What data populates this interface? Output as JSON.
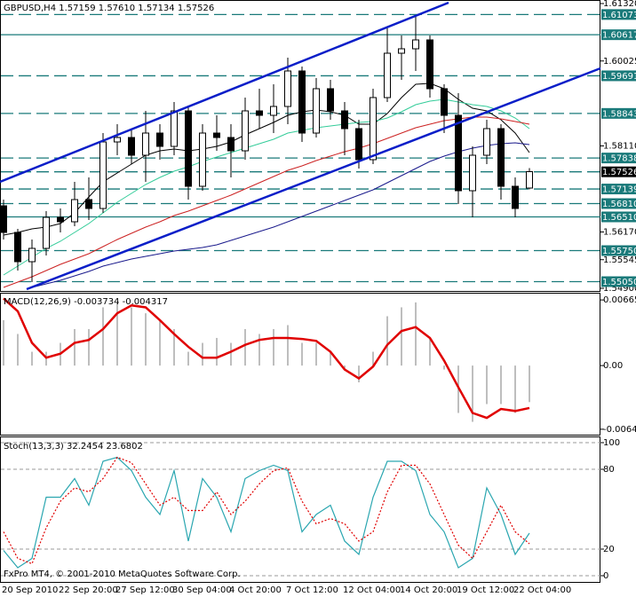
{
  "chart_data": [
    {
      "type": "candlestick",
      "title": "GBPUSD,H4  1.57159 1.57610 1.57134 1.57526",
      "categories": [
        "20 Sep 2010",
        null,
        null,
        null,
        "22 Sep 20:00",
        null,
        null,
        null,
        "27 Sep 12:00",
        null,
        null,
        null,
        "30 Sep 04:00",
        null,
        null,
        null,
        "4 Oct 20:00",
        null,
        null,
        null,
        "7 Oct 12:00",
        null,
        null,
        null,
        "12 Oct 04:00",
        null,
        null,
        null,
        "14 Oct 20:00",
        null,
        null,
        null,
        "19 Oct 12:00",
        null,
        null,
        null,
        "22 Oct 04:00",
        null
      ],
      "open": [
        1.5676,
        1.5616,
        1.555,
        1.558,
        1.565,
        1.564,
        1.569,
        1.567,
        1.582,
        1.583,
        1.579,
        1.584,
        1.581,
        1.589,
        1.572,
        1.584,
        1.583,
        1.58,
        1.589,
        1.588,
        1.59,
        1.598,
        1.584,
        1.594,
        1.589,
        1.585,
        1.578,
        1.592,
        1.602,
        1.603,
        1.605,
        1.594,
        1.588,
        1.571,
        1.579,
        1.585,
        1.572,
        1.5716
      ],
      "high": [
        1.569,
        1.5624,
        1.56,
        1.5664,
        1.567,
        1.573,
        1.574,
        1.584,
        1.586,
        1.585,
        1.589,
        1.586,
        1.591,
        1.59,
        1.586,
        1.588,
        1.586,
        1.592,
        1.594,
        1.595,
        1.601,
        1.599,
        1.5964,
        1.596,
        1.591,
        1.587,
        1.594,
        1.608,
        1.606,
        1.6104,
        1.606,
        1.595,
        1.593,
        1.581,
        1.587,
        1.586,
        1.574,
        1.5761
      ],
      "low": [
        1.56,
        1.553,
        1.5504,
        1.5564,
        1.5616,
        1.563,
        1.5644,
        1.566,
        1.579,
        1.577,
        1.573,
        1.578,
        1.579,
        1.569,
        1.571,
        1.58,
        1.574,
        1.578,
        1.585,
        1.584,
        1.586,
        1.582,
        1.583,
        1.587,
        1.579,
        1.576,
        1.577,
        1.591,
        1.596,
        1.598,
        1.592,
        1.584,
        1.568,
        1.565,
        1.577,
        1.569,
        1.565,
        1.5713
      ],
      "close": [
        1.5616,
        1.555,
        1.558,
        1.565,
        1.564,
        1.569,
        1.567,
        1.582,
        1.583,
        1.579,
        1.584,
        1.581,
        1.589,
        1.572,
        1.584,
        1.583,
        1.58,
        1.589,
        1.588,
        1.59,
        1.598,
        1.584,
        1.594,
        1.589,
        1.585,
        1.578,
        1.592,
        1.602,
        1.603,
        1.605,
        1.594,
        1.588,
        1.571,
        1.579,
        1.585,
        1.572,
        1.567,
        1.5753
      ],
      "up_color": "#ffffff",
      "down_color": "#000000",
      "candle_stroke": "#000000",
      "series": [
        {
          "color": "#000000",
          "values": [
            1.561,
            1.5616,
            1.5624,
            1.5628,
            1.5636,
            1.566,
            1.5696,
            1.573,
            1.575,
            1.577,
            1.579,
            1.58,
            1.5804,
            1.58,
            1.5804,
            1.581,
            1.582,
            1.5836,
            1.585,
            1.5864,
            1.588,
            1.5888,
            1.5892,
            1.5888,
            1.588,
            1.586,
            1.586,
            1.5884,
            1.592,
            1.595,
            1.5952,
            1.594,
            1.5916,
            1.5896,
            1.589,
            1.587,
            1.584,
            1.5796
          ]
        },
        {
          "color": "#33cc99",
          "values": [
            1.552,
            1.554,
            1.556,
            1.558,
            1.5596,
            1.5616,
            1.5636,
            1.566,
            1.5684,
            1.5704,
            1.5724,
            1.574,
            1.5754,
            1.5764,
            1.5776,
            1.5786,
            1.5796,
            1.5806,
            1.5816,
            1.5826,
            1.584,
            1.5846,
            1.5852,
            1.5856,
            1.586,
            1.5864,
            1.5866,
            1.5874,
            1.5888,
            1.5904,
            1.5912,
            1.5916,
            1.591,
            1.5904,
            1.59,
            1.589,
            1.5874,
            1.585
          ]
        },
        {
          "color": "#cc2222",
          "values": [
            1.5492,
            1.5504,
            1.5516,
            1.553,
            1.5544,
            1.5556,
            1.5568,
            1.5584,
            1.56,
            1.5614,
            1.5628,
            1.564,
            1.5654,
            1.5664,
            1.5676,
            1.5688,
            1.57,
            1.5714,
            1.5728,
            1.5742,
            1.5756,
            1.5766,
            1.5778,
            1.5788,
            1.5798,
            1.5806,
            1.5816,
            1.5828,
            1.584,
            1.5852,
            1.586,
            1.5868,
            1.5872,
            1.5876,
            1.5876,
            1.5872,
            1.5866,
            1.586
          ]
        },
        {
          "color": "#1a1a8c",
          "values": [
            null,
            null,
            1.5492,
            1.55,
            1.5508,
            1.5518,
            1.5528,
            1.554,
            1.5548,
            1.5556,
            1.5562,
            1.5568,
            1.5574,
            1.5578,
            1.5582,
            1.5588,
            1.5598,
            1.5608,
            1.5618,
            1.5628,
            1.564,
            1.5652,
            1.5664,
            1.5676,
            1.5688,
            1.57,
            1.5712,
            1.5728,
            1.5744,
            1.576,
            1.5776,
            1.5788,
            1.5798,
            1.5806,
            1.5812,
            1.5816,
            1.5818,
            1.5814
          ]
        }
      ],
      "level_color": "#1a7a7a",
      "highlight_color": "#000000",
      "levels": [
        {
          "value": 1.61073,
          "style": "dashed"
        },
        {
          "value": 1.60617,
          "style": "solid"
        },
        {
          "value": 1.59691,
          "style": "dashed"
        },
        {
          "value": 1.58843,
          "style": "dashed"
        },
        {
          "value": 1.57838,
          "style": "dashed"
        },
        {
          "value": 1.57526,
          "style": "dashed",
          "highlight": true
        },
        {
          "value": 1.57139,
          "style": "dashed"
        },
        {
          "value": 1.5681,
          "label": "1.56810",
          "style": "dashed"
        },
        {
          "value": 1.5651,
          "label": "1.56510",
          "style": "solid"
        },
        {
          "value": 1.5575,
          "label": "1.55750",
          "style": "dashed"
        },
        {
          "value": 1.5505,
          "label": "1.55050",
          "style": "dashed"
        }
      ],
      "ylim": [
        1.5486,
        1.6136
      ],
      "yticks": [
        {
          "value": 1.6132,
          "label": "1.61320"
        },
        1.60025,
        {
          "value": 1.5811,
          "label": "1.58110"
        },
        {
          "value": 1.5617,
          "label": "1.56170"
        },
        1.55545,
        {
          "value": 1.549,
          "label": "1.54900"
        }
      ]
    },
    {
      "type": "macd",
      "title": "MACD(12,26,9) -0.003734 -0.004317",
      "hist_color": "#a8a8a8",
      "values": [
        0.0046,
        0.0032,
        0.0014,
        0.0014,
        0.0023,
        0.0037,
        0.0037,
        0.0059,
        0.0064,
        0.0059,
        0.0053,
        0.0046,
        0.0037,
        0.0014,
        0.0023,
        0.0028,
        0.0023,
        0.0037,
        0.0032,
        0.0037,
        0.0041,
        0.0023,
        0.0023,
        0.0014,
        -0.0004,
        -0.0017,
        0.0014,
        0.005,
        0.0059,
        0.0064,
        0.0028,
        -0.0004,
        -0.0048,
        -0.0057,
        -0.0039,
        -0.0039,
        -0.0048,
        -0.0037
      ],
      "series": [
        {
          "color": "#e00000",
          "values": [
            0.0068,
            0.0055,
            0.0023,
            0.0008,
            0.0012,
            0.0023,
            0.0026,
            0.0037,
            0.0053,
            0.0061,
            0.0059,
            0.0046,
            0.0032,
            0.0019,
            0.0008,
            0.0008,
            0.0014,
            0.0021,
            0.0026,
            0.0028,
            0.0028,
            0.0027,
            0.0025,
            0.0014,
            -0.0004,
            -0.0013,
            -0.0001,
            0.0021,
            0.0035,
            0.0039,
            0.0028,
            0.0005,
            -0.0022,
            -0.0048,
            -0.0053,
            -0.0044,
            -0.0046,
            -0.0043
          ]
        }
      ],
      "ylim": [
        -0.007,
        0.0072
      ],
      "yticks": [
        0.00665,
        {
          "value": 0,
          "label": "0.00"
        },
        -0.00645
      ]
    },
    {
      "type": "stochastic",
      "title": "Stoch(13,3,3) 32.2454 23.6802",
      "series": [
        {
          "color": "#2aa6b0",
          "values": [
            19,
            6,
            13,
            59,
            59,
            73,
            53,
            86,
            89,
            79,
            59,
            46,
            79,
            26,
            73,
            59,
            33,
            73,
            79,
            83,
            79,
            33,
            46,
            53,
            26,
            16,
            59,
            86,
            86,
            79,
            46,
            33,
            6,
            13,
            66,
            46,
            16,
            32
          ]
        },
        {
          "color": "#e00000",
          "dashed": true,
          "values": [
            33,
            13,
            9,
            36,
            56,
            66,
            63,
            73,
            89,
            85,
            69,
            53,
            59,
            49,
            49,
            63,
            46,
            56,
            69,
            79,
            81,
            56,
            39,
            43,
            39,
            26,
            33,
            63,
            83,
            83,
            69,
            46,
            23,
            13,
            33,
            53,
            33,
            24
          ]
        }
      ],
      "grid": true,
      "ylim": [
        -4,
        104
      ],
      "yticks": [
        100,
        80,
        20,
        0
      ]
    }
  ],
  "footer": "FxPro MT4, © 2001-2010 MetaQuotes Software Corp."
}
